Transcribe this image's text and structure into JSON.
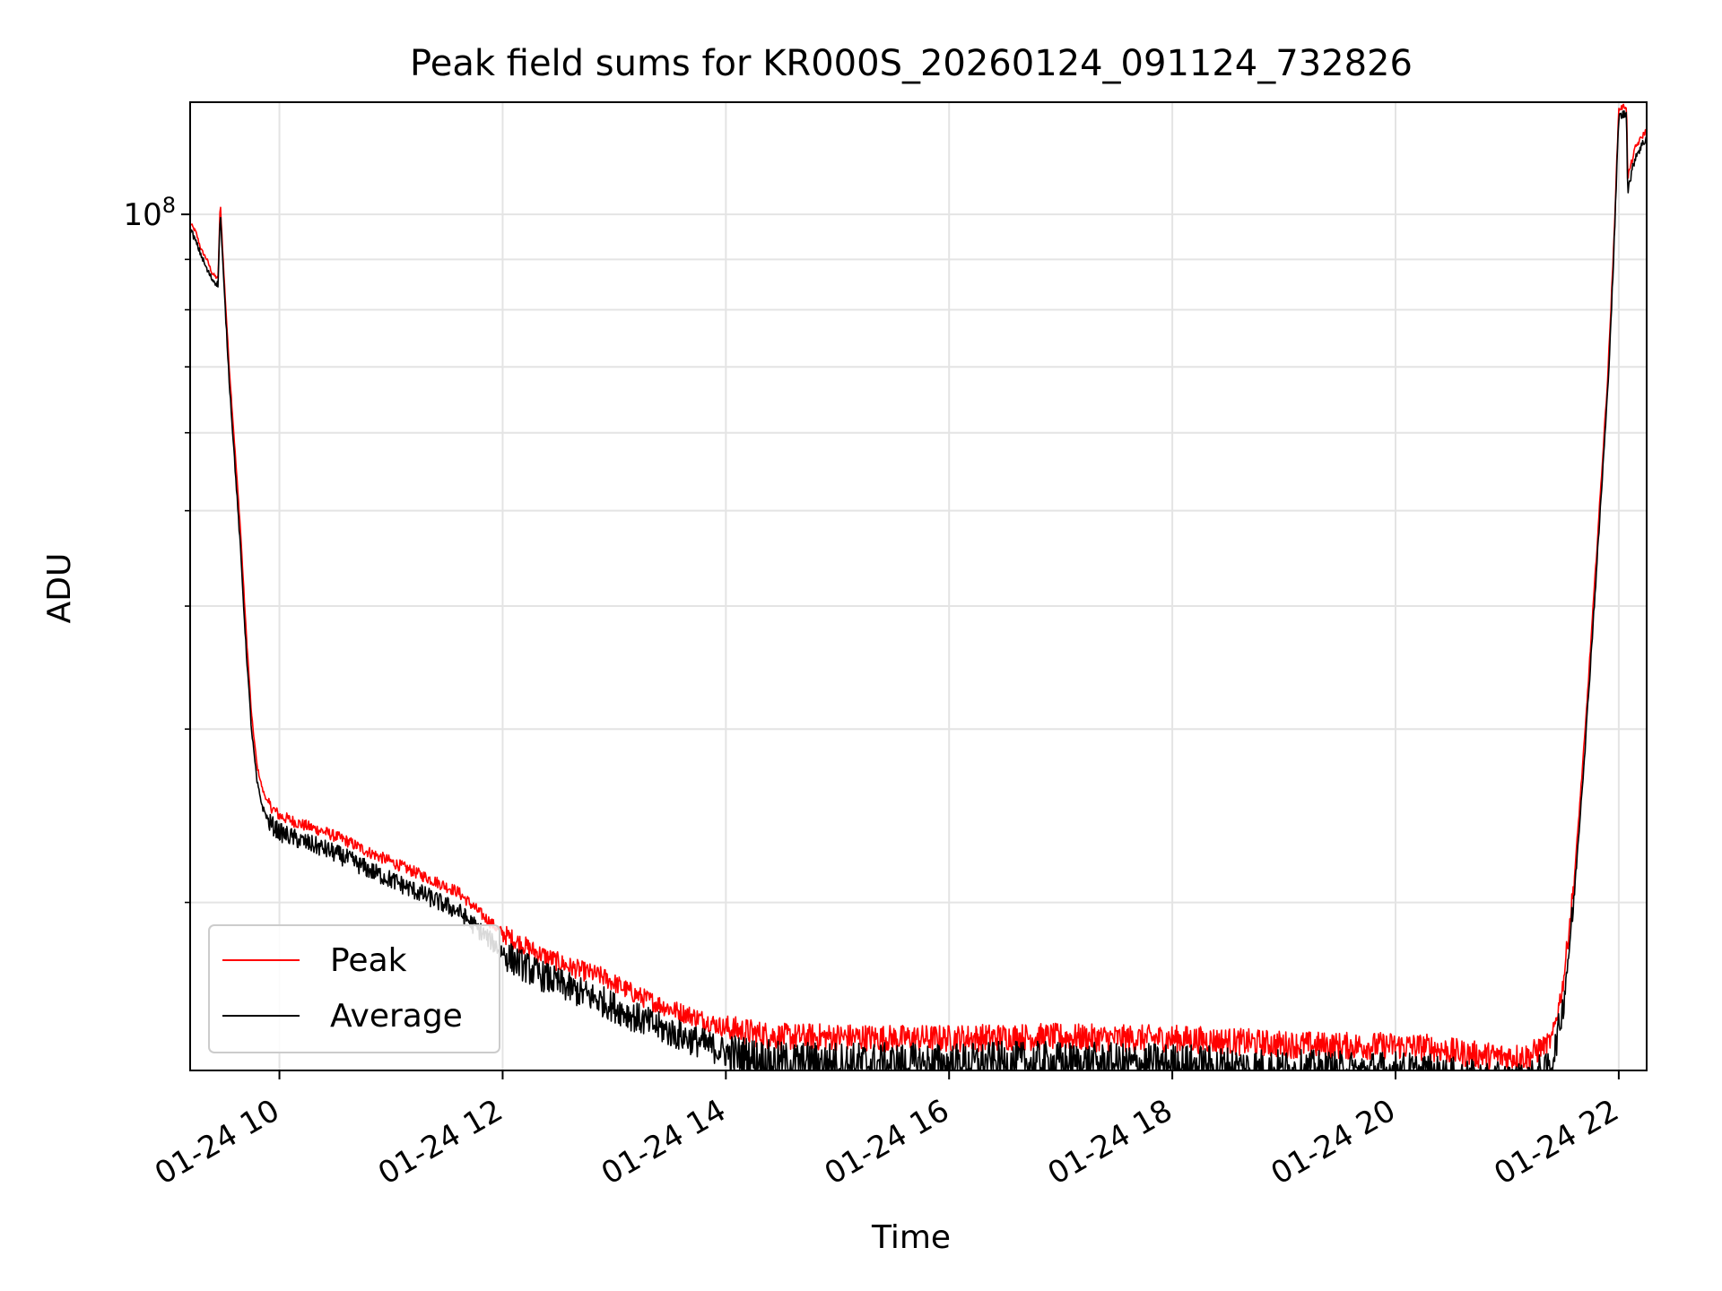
{
  "chart_data": {
    "type": "line",
    "title": "Peak field sums for KR000S_20260124_091124_732826",
    "xlabel": "Time",
    "ylabel": "ADU",
    "x_units": "hours since 01-24 00:00",
    "xlim": [
      9.2,
      22.25
    ],
    "y_scale": "log",
    "ylim": [
      13500000,
      130000000
    ],
    "x_ticks": [
      {
        "value": 10,
        "label": "01-24 10"
      },
      {
        "value": 12,
        "label": "01-24 12"
      },
      {
        "value": 14,
        "label": "01-24 14"
      },
      {
        "value": 16,
        "label": "01-24 16"
      },
      {
        "value": 18,
        "label": "01-24 18"
      },
      {
        "value": 20,
        "label": "01-24 20"
      },
      {
        "value": 22,
        "label": "01-24 22"
      }
    ],
    "y_major_ticks": [
      {
        "value": 100000000,
        "base": "10",
        "exp": "8"
      }
    ],
    "y_minor_ticks": [
      20000000,
      30000000,
      40000000,
      50000000,
      60000000,
      70000000,
      80000000,
      90000000
    ],
    "grid": true,
    "legend_position": "lower-left",
    "series": [
      {
        "name": "Peak",
        "color": "#ff0000",
        "x": [
          9.2,
          9.25,
          9.3,
          9.35,
          9.4,
          9.45,
          9.47,
          9.5,
          9.55,
          9.6,
          9.65,
          9.7,
          9.75,
          9.8,
          9.85,
          9.9,
          10.0,
          10.2,
          10.4,
          10.6,
          10.8,
          11.0,
          11.2,
          11.4,
          11.6,
          11.8,
          12.0,
          12.3,
          12.6,
          12.9,
          13.2,
          13.5,
          13.8,
          14.0,
          14.3,
          14.5,
          15.0,
          15.5,
          16.0,
          16.5,
          17.0,
          17.5,
          18.0,
          18.5,
          19.0,
          19.5,
          20.0,
          20.3,
          20.6,
          20.9,
          21.2,
          21.4,
          21.5,
          21.6,
          21.7,
          21.8,
          21.9,
          21.95,
          22.0,
          22.07,
          22.08,
          22.15,
          22.25
        ],
        "y": [
          98000000,
          96000000,
          92000000,
          90000000,
          87000000,
          86000000,
          103000000,
          88000000,
          70000000,
          58000000,
          48000000,
          38000000,
          31000000,
          27500000,
          26000000,
          25200000,
          24500000,
          24000000,
          23600000,
          23100000,
          22500000,
          22000000,
          21500000,
          21000000,
          20500000,
          19500000,
          18600000,
          17800000,
          17200000,
          16800000,
          16100000,
          15600000,
          15200000,
          14900000,
          14700000,
          14600000,
          14600000,
          14550000,
          14550000,
          14600000,
          14600000,
          14550000,
          14550000,
          14450000,
          14350000,
          14300000,
          14300000,
          14250000,
          14050000,
          13950000,
          13950000,
          14500000,
          16500000,
          21000000,
          30000000,
          45000000,
          68000000,
          90000000,
          128000000,
          129000000,
          109000000,
          117000000,
          122000000
        ]
      },
      {
        "name": "Average",
        "color": "#000000",
        "x": [
          9.2,
          9.25,
          9.3,
          9.35,
          9.4,
          9.45,
          9.47,
          9.5,
          9.55,
          9.6,
          9.65,
          9.7,
          9.75,
          9.8,
          9.85,
          9.9,
          10.0,
          10.2,
          10.4,
          10.6,
          10.8,
          11.0,
          11.2,
          11.4,
          11.6,
          11.8,
          12.0,
          12.3,
          12.6,
          12.9,
          13.2,
          13.5,
          13.8,
          14.0,
          14.3,
          14.5,
          15.0,
          15.5,
          16.0,
          16.5,
          17.0,
          17.5,
          18.0,
          18.5,
          19.0,
          19.5,
          20.0,
          20.3,
          20.6,
          20.9,
          21.2,
          21.4,
          21.5,
          21.6,
          21.7,
          21.8,
          21.9,
          21.95,
          22.0,
          22.07,
          22.08,
          22.15,
          22.25
        ],
        "y": [
          97000000,
          94000000,
          91000000,
          88000000,
          86000000,
          85000000,
          101000000,
          86000000,
          68000000,
          56000000,
          46000000,
          36500000,
          30000000,
          26500000,
          25000000,
          24300000,
          23700000,
          23200000,
          22800000,
          22300000,
          21700000,
          21200000,
          20700000,
          20200000,
          19700000,
          18800000,
          17900000,
          17100000,
          16500000,
          16000000,
          15400000,
          14900000,
          14500000,
          14200000,
          14000000,
          13900000,
          13900000,
          13850000,
          13850000,
          13900000,
          13900000,
          13850000,
          13850000,
          13750000,
          13650000,
          13600000,
          13600000,
          13500000,
          13350000,
          13250000,
          13250000,
          13800000,
          15800000,
          20300000,
          29000000,
          43500000,
          66000000,
          88000000,
          126000000,
          127000000,
          106000000,
          115000000,
          120000000
        ]
      }
    ]
  }
}
